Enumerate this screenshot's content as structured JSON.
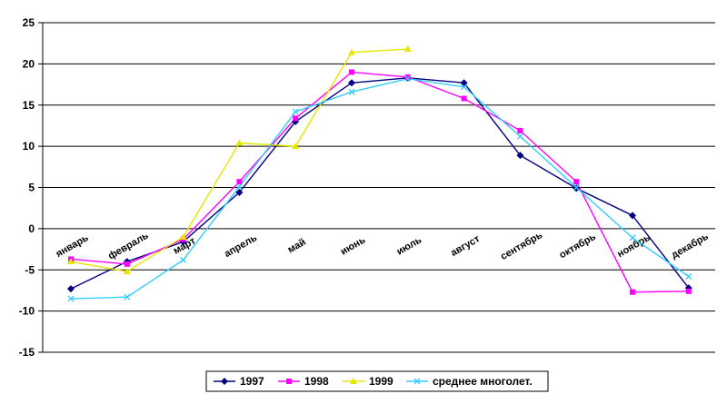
{
  "chart_data": {
    "type": "line",
    "title": "",
    "xlabel": "",
    "ylabel": "",
    "categories": [
      "январь",
      "февраль",
      "март",
      "апрель",
      "май",
      "июнь",
      "июль",
      "август",
      "сентябрь",
      "октябрь",
      "ноябрь",
      "декабрь"
    ],
    "ylim": [
      -15,
      25
    ],
    "yticks": [
      -15,
      -10,
      -5,
      0,
      5,
      10,
      15,
      20,
      25
    ],
    "grid": true,
    "legend_position": "bottom",
    "series": [
      {
        "name": "1997",
        "color": "#000080",
        "marker": "diamond",
        "values": [
          -7.3,
          -4.0,
          -1.6,
          4.4,
          13.0,
          17.7,
          18.3,
          17.7,
          8.9,
          4.9,
          1.6,
          -7.2
        ]
      },
      {
        "name": "1998",
        "color": "#ff00ff",
        "marker": "square",
        "values": [
          -3.7,
          -4.3,
          -1.3,
          5.7,
          13.4,
          19.0,
          18.4,
          15.8,
          11.9,
          5.7,
          -7.7,
          -7.6
        ]
      },
      {
        "name": "1999",
        "color": "#e6e600",
        "marker": "triangle",
        "values": [
          -4.0,
          -5.2,
          -1.0,
          10.4,
          10.0,
          21.4,
          21.8,
          null,
          null,
          null,
          null,
          null
        ]
      },
      {
        "name": "среднее многолет.",
        "color": "#33ccff",
        "marker": "x",
        "values": [
          -8.5,
          -8.3,
          -3.8,
          5.1,
          14.2,
          16.6,
          18.2,
          17.2,
          11.2,
          5.0,
          -1.1,
          -5.8
        ]
      }
    ]
  }
}
